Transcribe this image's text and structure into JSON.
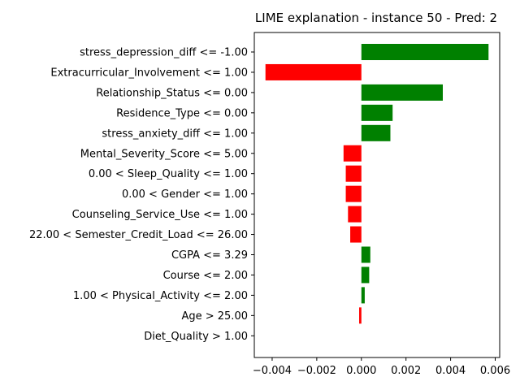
{
  "chart_data": {
    "type": "bar",
    "orientation": "horizontal",
    "title": "LIME explanation - instance 50 - Pred: 2",
    "xlabel": "",
    "ylabel": "",
    "xlim": [
      -0.0048,
      0.0062
    ],
    "xticks": [
      -0.004,
      -0.002,
      0.0,
      0.002,
      0.004,
      0.006
    ],
    "xtick_labels": [
      "−0.004",
      "−0.002",
      "0.000",
      "0.002",
      "0.004",
      "0.006"
    ],
    "grid": false,
    "positive_color": "#008000",
    "negative_color": "#ff0000",
    "categories": [
      "stress_depression_diff <= -1.00",
      "Extracurricular_Involvement <= 1.00",
      "Relationship_Status <= 0.00",
      "Residence_Type <= 0.00",
      "stress_anxiety_diff <= 1.00",
      "Mental_Severity_Score <= 5.00",
      "0.00 < Sleep_Quality <= 1.00",
      "0.00 < Gender <= 1.00",
      "Counseling_Service_Use <= 1.00",
      "22.00 < Semester_Credit_Load <= 26.00",
      "CGPA <= 3.29",
      "Course <= 2.00",
      "1.00 < Physical_Activity <= 2.00",
      "Age > 25.00",
      "Diet_Quality > 1.00"
    ],
    "values": [
      0.0057,
      -0.0043,
      0.00365,
      0.0014,
      0.0013,
      -0.0008,
      -0.0007,
      -0.0007,
      -0.0006,
      -0.0005,
      0.0004,
      0.00035,
      0.00015,
      -0.0001,
      0.0
    ]
  }
}
